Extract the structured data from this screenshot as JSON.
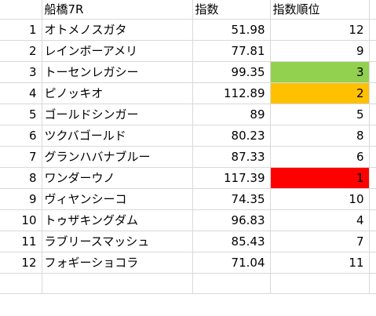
{
  "header": {
    "race": "船橋7R",
    "index": "指数",
    "rank": "指数順位"
  },
  "colors": {
    "rank1": "#ff0000",
    "rank2": "#ffc000",
    "rank3": "#92d050"
  },
  "rows": [
    {
      "n": "1",
      "name": "オトメノスガタ",
      "index": "51.98",
      "rank": "12"
    },
    {
      "n": "2",
      "name": "レインボーアメリ",
      "index": "77.81",
      "rank": "9"
    },
    {
      "n": "3",
      "name": "トーセンレガシー",
      "index": "99.35",
      "rank": "3"
    },
    {
      "n": "4",
      "name": "ピノッキオ",
      "index": "112.89",
      "rank": "2"
    },
    {
      "n": "5",
      "name": "ゴールドシンガー",
      "index": "89",
      "rank": "5"
    },
    {
      "n": "6",
      "name": "ツクバゴールド",
      "index": "80.23",
      "rank": "8"
    },
    {
      "n": "7",
      "name": "グランハバナブルー",
      "index": "87.33",
      "rank": "6"
    },
    {
      "n": "8",
      "name": "ワンダーウノ",
      "index": "117.39",
      "rank": "1"
    },
    {
      "n": "9",
      "name": "ヴィヤンシーコ",
      "index": "74.35",
      "rank": "10"
    },
    {
      "n": "10",
      "name": "トゥザキングダム",
      "index": "96.83",
      "rank": "4"
    },
    {
      "n": "11",
      "name": "ラブリースマッシュ",
      "index": "85.43",
      "rank": "7"
    },
    {
      "n": "12",
      "name": "フォギーショコラ",
      "index": "71.04",
      "rank": "11"
    }
  ]
}
